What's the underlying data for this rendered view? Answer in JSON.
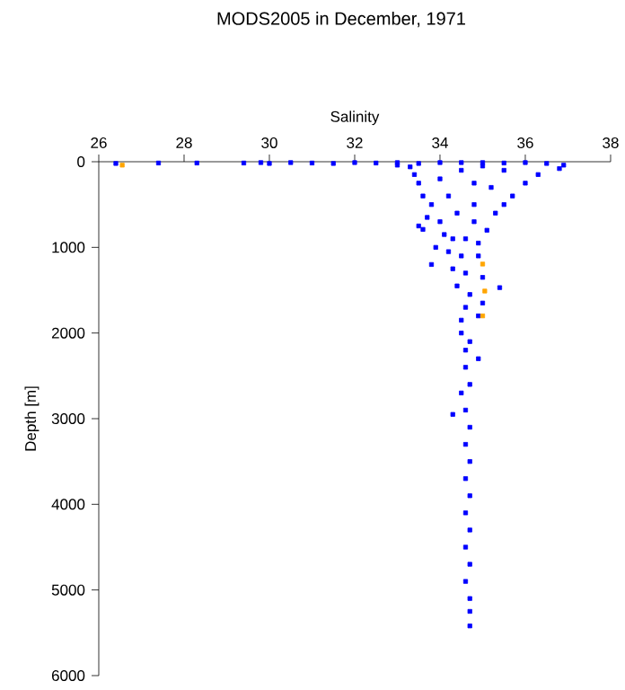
{
  "chart_data": {
    "type": "scatter",
    "title": "MODS2005 in December, 1971",
    "xlabel": "Salinity",
    "ylabel": "Depth [m]",
    "xlim": [
      26,
      38
    ],
    "xticks": [
      26,
      28,
      30,
      32,
      34,
      36,
      38
    ],
    "ylim": [
      6000,
      0
    ],
    "yticks": [
      0,
      1000,
      2000,
      3000,
      4000,
      5000,
      6000
    ],
    "marker": "square",
    "series": [
      {
        "color": "#0000ff",
        "x": [
          26.4,
          27.4,
          28.3,
          29.4,
          29.8,
          30.0,
          30.5,
          31.0,
          31.5,
          32.0,
          32.5,
          33.0,
          33.5,
          34.0,
          34.5,
          35.0,
          35.5,
          36.0,
          36.5,
          36.9,
          36.8,
          33.3,
          33.0,
          33.4,
          33.5,
          33.6,
          35.0,
          36.3,
          36.0,
          35.7,
          35.5,
          34.5,
          35.5,
          34.0,
          34.8,
          35.2,
          33.8,
          34.2,
          34.8,
          35.3,
          33.7,
          33.5,
          33.6,
          34.0,
          34.4,
          34.8,
          35.1,
          34.1,
          34.3,
          34.6,
          34.9,
          33.9,
          34.2,
          34.5,
          34.9,
          33.8,
          34.3,
          34.6,
          35.0,
          34.4,
          34.7,
          35.4,
          35.0,
          34.6,
          34.5,
          34.9,
          34.5,
          34.6,
          34.7,
          34.9,
          34.6,
          34.7,
          34.5,
          34.3,
          34.6,
          34.7,
          34.6,
          34.7,
          34.6,
          34.7,
          34.6,
          34.7,
          34.6,
          34.7,
          34.6,
          34.7,
          34.7,
          34.7
        ],
        "values": [
          20,
          15,
          15,
          15,
          10,
          20,
          10,
          15,
          20,
          10,
          15,
          10,
          20,
          10,
          10,
          10,
          15,
          10,
          20,
          40,
          80,
          60,
          40,
          150,
          250,
          400,
          50,
          150,
          250,
          400,
          500,
          100,
          100,
          200,
          250,
          300,
          500,
          400,
          500,
          600,
          650,
          750,
          790,
          700,
          600,
          700,
          800,
          850,
          900,
          900,
          950,
          1000,
          1050,
          1100,
          1100,
          1200,
          1250,
          1300,
          1350,
          1450,
          1550,
          1470,
          1650,
          1700,
          1850,
          1800,
          2000,
          2200,
          2100,
          2300,
          2400,
          2600,
          2700,
          2950,
          2900,
          3100,
          3300,
          3500,
          3700,
          3900,
          4100,
          4300,
          4500,
          4700,
          4900,
          5100,
          5250,
          5420
        ]
      },
      {
        "color": "#ffa500",
        "x": [
          26.55,
          35.0,
          35.05,
          35.0
        ],
        "values": [
          40,
          1195,
          1510,
          1800
        ]
      }
    ]
  }
}
